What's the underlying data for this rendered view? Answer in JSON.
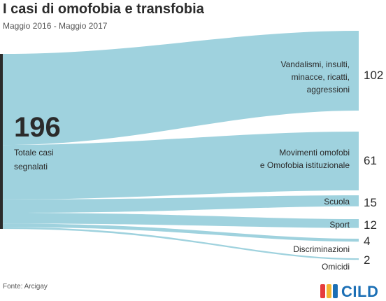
{
  "header": {
    "title": "I casi di omofobia e transfobia",
    "subtitle": "Maggio 2016 - Maggio 2017"
  },
  "footer": {
    "source": "Fonte: Arcigay",
    "logo_text": "CILD"
  },
  "colors": {
    "flow": "#9fd2de",
    "source_bar": "#2b2b2b",
    "text": "#2b2b2b",
    "logo_red": "#e63d3d",
    "logo_yellow": "#f3b630",
    "logo_blue": "#1b6fb5"
  },
  "chart_data": {
    "type": "sankey",
    "source": {
      "label": "Totale casi segnalati",
      "total": 196
    },
    "categories": [
      {
        "label": "Vandalismi, insulti, minacce, ricatti, aggressioni",
        "value": 102
      },
      {
        "label": "Movimenti omofobi e Omofobia istituzionale",
        "value": 61
      },
      {
        "label": "Scuola",
        "value": 15
      },
      {
        "label": "Sport",
        "value": 12
      },
      {
        "label": "Discriminazioni",
        "value": 4
      },
      {
        "label": "Omicidi",
        "value": 2
      }
    ]
  }
}
